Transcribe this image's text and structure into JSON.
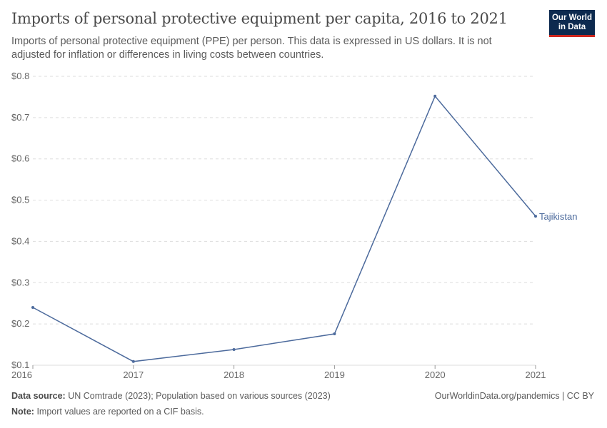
{
  "header": {
    "title": "Imports of personal protective equipment per capita, 2016 to 2021",
    "subtitle": "Imports of personal protective equipment (PPE) per person. This data is expressed in US dollars. It is not adjusted for inflation or differences in living costs between countries.",
    "logo": [
      "Our World",
      "in Data"
    ]
  },
  "chart_data": {
    "type": "line",
    "x": [
      2016,
      2017,
      2018,
      2019,
      2020,
      2021
    ],
    "series": [
      {
        "name": "Tajikistan",
        "values": [
          0.24,
          0.109,
          0.138,
          0.176,
          0.752,
          0.461
        ],
        "color": "#4c6a9c"
      }
    ],
    "ylim": [
      0.1,
      0.8
    ],
    "y_ticks": [
      "$0.1",
      "$0.2",
      "$0.3",
      "$0.4",
      "$0.5",
      "$0.6",
      "$0.7",
      "$0.8"
    ],
    "x_ticks": [
      "2016",
      "2017",
      "2018",
      "2019",
      "2020",
      "2021"
    ],
    "grid": "horizontal dashed",
    "legend": "line-end label"
  },
  "footer": {
    "source_label": "Data source:",
    "source": "UN Comtrade (2023); Population based on various sources (2023)",
    "note_label": "Note:",
    "note": "Import values are reported on a CIF basis.",
    "credit": "OurWorldinData.org/pandemics | CC BY"
  }
}
